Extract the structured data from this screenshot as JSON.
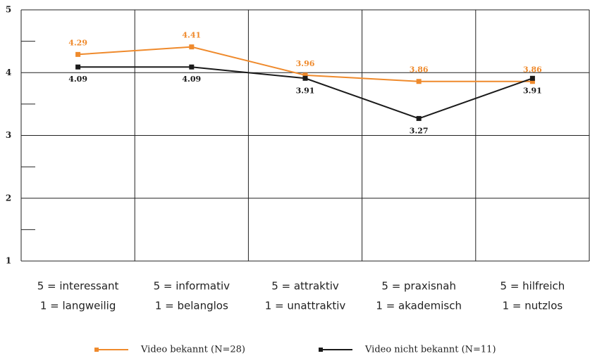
{
  "chart_data": {
    "type": "line",
    "categories": [
      [
        "5 = interessant",
        "1 = langweilig"
      ],
      [
        "5 = informativ",
        "1 = belanglos"
      ],
      [
        "5 = attraktiv",
        "1 = unattraktiv"
      ],
      [
        "5 = praxisnah",
        "1 = akademisch"
      ],
      [
        "5 = hilfreich",
        "1 = nutzlos"
      ]
    ],
    "series": [
      {
        "name": "Video bekannt (N=28)",
        "color": "#ef8a2c",
        "values": [
          4.29,
          4.41,
          3.96,
          3.86,
          3.86
        ]
      },
      {
        "name": "Video nicht bekannt (N=11)",
        "color": "#1a1a1a",
        "values": [
          4.09,
          4.09,
          3.91,
          3.27,
          3.91
        ]
      }
    ],
    "ylim": [
      1,
      5
    ],
    "yticks": [
      1,
      2,
      3,
      4,
      5
    ],
    "yminorticks": [
      1.5,
      2.5,
      3.5,
      4.5
    ],
    "grid": true,
    "legend": "bottom"
  }
}
